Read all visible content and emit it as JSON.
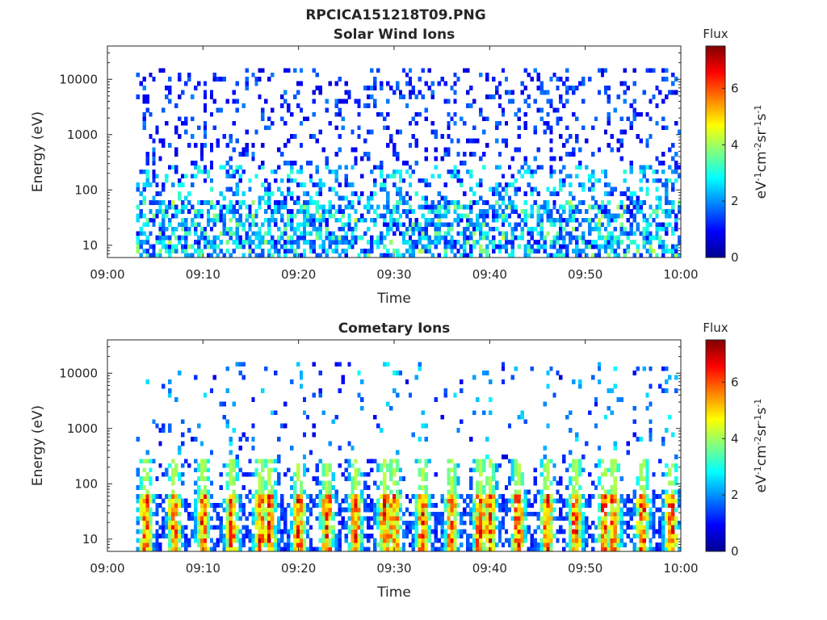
{
  "figure": {
    "title": "RPCICA151218T09.PNG"
  },
  "colorscale": [
    "#00008f",
    "#0000ff",
    "#0080ff",
    "#00ffff",
    "#80ff80",
    "#ffff00",
    "#ff8000",
    "#ff0000",
    "#800000"
  ],
  "chart_data": [
    {
      "type": "heatmap",
      "title": "Solar Wind Ions",
      "xlabel": "Time",
      "ylabel": "Energy (eV)",
      "x_ticks": [
        "09:00",
        "09:10",
        "09:20",
        "09:30",
        "09:40",
        "09:50",
        "10:00"
      ],
      "xlim": [
        "09:00",
        "10:00"
      ],
      "y_scale": "log",
      "y_ticks": [
        "10",
        "100",
        "1000",
        "10000"
      ],
      "ylim": [
        6,
        40000
      ],
      "data_start": "09:03",
      "colorbar": {
        "title": "Flux",
        "label": "eV-1cm-2sr-1s-1",
        "ticks": [
          "0",
          "2",
          "4",
          "6"
        ],
        "range": [
          0,
          7.5
        ]
      },
      "legend": "colorbar-right",
      "grid": false,
      "profile": {
        "low_energy_max_flux": 4.5,
        "high_energy_flux": 1.2,
        "sparse_fill": 0.28
      }
    },
    {
      "type": "heatmap",
      "title": "Cometary Ions",
      "xlabel": "Time",
      "ylabel": "Energy (eV)",
      "x_ticks": [
        "09:00",
        "09:10",
        "09:20",
        "09:30",
        "09:40",
        "09:50",
        "10:00"
      ],
      "xlim": [
        "09:00",
        "10:00"
      ],
      "y_scale": "log",
      "y_ticks": [
        "10",
        "100",
        "1000",
        "10000"
      ],
      "ylim": [
        6,
        40000
      ],
      "data_start": "09:03",
      "colorbar": {
        "title": "Flux",
        "label": "eV-1cm-2sr-1s-1",
        "ticks": [
          "0",
          "2",
          "4",
          "6"
        ],
        "range": [
          0,
          7.5
        ]
      },
      "legend": "colorbar-right",
      "grid": false,
      "profile": {
        "low_energy_max_flux": 7.2,
        "high_energy_flux": 1.0,
        "sparse_fill": 0.1
      },
      "bursts": [
        "09:04",
        "09:07",
        "09:10",
        "09:13",
        "09:16",
        "09:17",
        "09:20",
        "09:23",
        "09:26",
        "09:29",
        "09:30",
        "09:33",
        "09:36",
        "09:39",
        "09:40",
        "09:43",
        "09:46",
        "09:49",
        "09:52",
        "09:53",
        "09:56",
        "09:59"
      ]
    }
  ]
}
